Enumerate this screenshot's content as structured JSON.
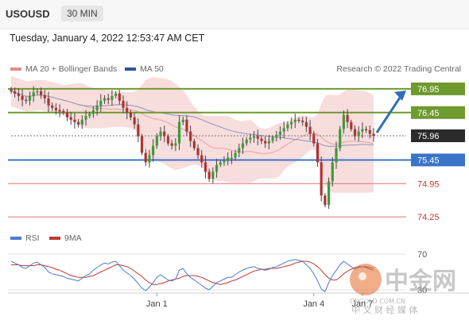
{
  "header": {
    "symbol": "USOUSD",
    "timeframe": "30 MIN"
  },
  "timestamp": "Tuesday, January 4, 2022 12:53:47 AM CET",
  "legend": {
    "items": [
      {
        "label": "MA 20 + Bollinger Bands",
        "color": "#e88b8b"
      },
      {
        "label": "MA 50",
        "color": "#2f5597"
      }
    ],
    "source": "Research © 2022 Trading Central"
  },
  "rsi_legend": {
    "items": [
      {
        "label": "RSI",
        "color": "#4a7bd0"
      },
      {
        "label": "9MA",
        "color": "#c0392b"
      }
    ]
  },
  "watermark": {
    "name": "中金网",
    "url": "CNGOLD.COM.CN",
    "tagline": "中 文 财 经 媒 体"
  },
  "chart_data": {
    "type": "candlestick",
    "y_range": [
      74.05,
      77.15
    ],
    "x_labels": [
      {
        "label": "Jan 1",
        "index": 39
      },
      {
        "label": "Jan 4",
        "index": 81
      },
      {
        "label": "Jan 7",
        "index": 94
      }
    ],
    "levels": [
      {
        "value": 76.95,
        "label": "76.95",
        "type": "resistance",
        "color": "#6e9a2e"
      },
      {
        "value": 76.45,
        "label": "76.45",
        "type": "resistance",
        "color": "#6e9a2e"
      },
      {
        "value": 75.96,
        "label": "75.96",
        "type": "current",
        "color": "#2b2b2b"
      },
      {
        "value": 75.45,
        "label": "75.45",
        "type": "pivot",
        "color": "#3a74c8"
      },
      {
        "value": 74.95,
        "label": "74.95",
        "type": "support",
        "color": "#e07070"
      },
      {
        "value": 74.25,
        "label": "74.25",
        "type": "support",
        "color": "#e07070"
      }
    ],
    "forecast_arrow": {
      "from": 75.96,
      "to": 76.95
    },
    "close": [
      76.9,
      76.85,
      76.8,
      76.72,
      76.7,
      76.8,
      76.88,
      76.9,
      76.82,
      76.75,
      76.6,
      76.55,
      76.5,
      76.48,
      76.45,
      76.35,
      76.3,
      76.25,
      76.2,
      76.3,
      76.38,
      76.42,
      76.5,
      76.6,
      76.7,
      76.75,
      76.72,
      76.8,
      76.85,
      76.7,
      76.55,
      76.45,
      76.35,
      76.2,
      75.95,
      75.6,
      75.4,
      75.55,
      75.75,
      75.95,
      76.05,
      75.95,
      75.8,
      75.75,
      75.8,
      76.25,
      76.3,
      76.05,
      75.85,
      75.7,
      75.55,
      75.4,
      75.2,
      75.05,
      75.2,
      75.35,
      75.4,
      75.45,
      75.5,
      75.5,
      75.6,
      75.7,
      75.8,
      75.88,
      75.92,
      75.95,
      75.9,
      75.85,
      75.8,
      75.85,
      75.92,
      75.98,
      76.05,
      76.12,
      76.2,
      76.25,
      76.3,
      76.28,
      76.25,
      76.15,
      76.0,
      75.8,
      75.4,
      74.7,
      74.5,
      75.0,
      75.4,
      75.7,
      76.1,
      76.4,
      76.25,
      76.1,
      75.95,
      76.05,
      76.1,
      76.08,
      76.0,
      75.96
    ],
    "rsi": [
      62,
      60,
      58,
      55,
      54,
      57,
      60,
      61,
      58,
      55,
      50,
      48,
      47,
      46,
      45,
      43,
      42,
      41,
      40,
      43,
      46,
      48,
      52,
      55,
      58,
      60,
      59,
      61,
      62,
      57,
      52,
      49,
      46,
      42,
      37,
      32,
      29,
      33,
      38,
      44,
      47,
      44,
      41,
      40,
      42,
      52,
      54,
      48,
      44,
      41,
      38,
      35,
      32,
      30,
      34,
      38,
      40,
      42,
      44,
      44,
      47,
      50,
      52,
      54,
      55,
      56,
      54,
      53,
      52,
      53,
      55,
      56,
      58,
      60,
      62,
      63,
      64,
      63,
      62,
      58,
      54,
      48,
      40,
      31,
      28,
      38,
      46,
      52,
      58,
      62,
      59,
      56,
      53,
      55,
      56,
      55,
      53,
      52
    ],
    "rsi_ma": [
      58,
      58,
      58,
      57,
      57,
      57,
      57,
      58,
      58,
      57,
      56,
      55,
      53,
      52,
      50,
      48,
      46,
      45,
      44,
      44,
      44,
      45,
      46,
      48,
      50,
      52,
      54,
      56,
      58,
      58,
      57,
      56,
      54,
      51,
      48,
      45,
      41,
      38,
      36,
      36,
      37,
      38,
      40,
      41,
      42,
      43,
      45,
      46,
      46,
      46,
      45,
      44,
      42,
      40,
      38,
      37,
      36,
      37,
      38,
      40,
      41,
      43,
      45,
      47,
      49,
      51,
      52,
      53,
      53,
      54,
      54,
      54,
      55,
      56,
      57,
      58,
      60,
      61,
      62,
      62,
      61,
      59,
      56,
      52,
      47,
      43,
      41,
      41,
      44,
      48,
      51,
      53,
      55,
      56,
      56,
      56,
      55,
      54
    ],
    "rsi_ticks": [
      {
        "label": "70",
        "value": 70
      },
      {
        "label": "30",
        "value": 30
      }
    ]
  }
}
